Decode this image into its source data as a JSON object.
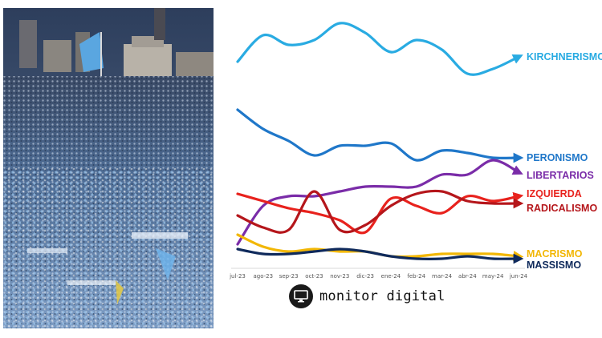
{
  "brand": {
    "name": "monitor digital",
    "logo_icon": "monitor-icon"
  },
  "photo": {
    "icon": "crowd-with-flags-photo"
  },
  "chart_data": {
    "type": "line",
    "title": "",
    "xlabel": "",
    "ylabel": "",
    "ylim": [
      0,
      100
    ],
    "grid": false,
    "legend": "labels at line ends",
    "categories": [
      "jul-23",
      "ago-23",
      "sep-23",
      "oct-23",
      "nov-23",
      "dic-23",
      "ene-24",
      "feb-24",
      "mar-24",
      "abr-24",
      "may-24",
      "jun-24"
    ],
    "series": [
      {
        "name": "KIRCHNERISMO",
        "color": "#29abe2",
        "values": [
          83,
          94,
          90,
          92,
          99,
          95,
          87,
          92,
          88,
          78,
          80,
          85
        ]
      },
      {
        "name": "PERONISMO",
        "color": "#1f77c9",
        "values": [
          63,
          55,
          50,
          44,
          48,
          48,
          49,
          42,
          46,
          45,
          43,
          43
        ]
      },
      {
        "name": "LIBERTARIOS",
        "color": "#7a2ca8",
        "values": [
          7,
          23,
          27,
          27,
          29,
          31,
          31,
          31,
          36,
          36,
          42,
          37
        ]
      },
      {
        "name": "IZQUIERDA",
        "color": "#e8221d",
        "values": [
          28,
          25,
          22,
          20,
          17,
          12,
          26,
          23,
          20,
          27,
          25,
          27
        ]
      },
      {
        "name": "RADICALISMO",
        "color": "#b5161b",
        "values": [
          19,
          14,
          13,
          29,
          13,
          15,
          23,
          28,
          29,
          25,
          24,
          24
        ]
      },
      {
        "name": "MACRISMO",
        "color": "#f2b705",
        "values": [
          11,
          6,
          4,
          5,
          4,
          4,
          2,
          2,
          3,
          3,
          3,
          2
        ]
      },
      {
        "name": "MASSISMO",
        "color": "#0f2a5c",
        "values": [
          5,
          3,
          3,
          4,
          5,
          4,
          2,
          1,
          1,
          2,
          1,
          1
        ]
      }
    ]
  }
}
